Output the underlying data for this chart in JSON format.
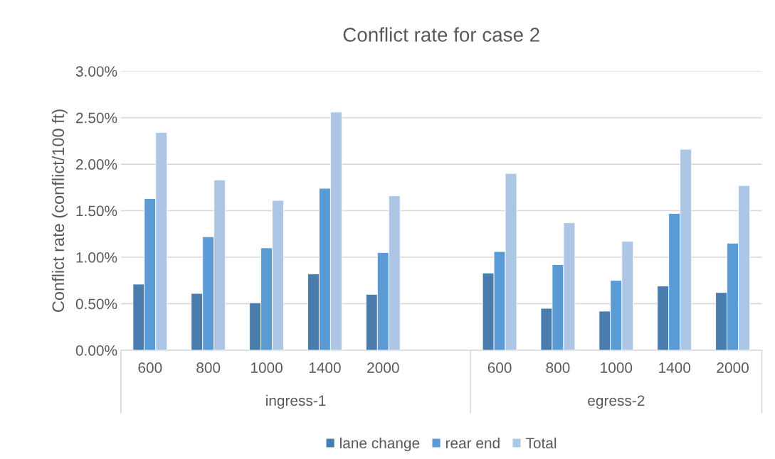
{
  "chart_data": {
    "type": "bar",
    "title": "Conflict rate for case 2",
    "ylabel": "Conflict rate (conflict/100 ft)",
    "categories": [
      "600",
      "800",
      "1000",
      "1400",
      "2000",
      null,
      "600",
      "800",
      "1000",
      "1400",
      "2000"
    ],
    "series": [
      {
        "name": "lane change",
        "color": "#4a7dad",
        "values": [
          0.71,
          0.61,
          0.51,
          0.82,
          0.6,
          null,
          0.83,
          0.45,
          0.42,
          0.69,
          0.62
        ]
      },
      {
        "name": "rear end",
        "color": "#5b9bd5",
        "values": [
          1.63,
          1.22,
          1.1,
          1.74,
          1.05,
          null,
          1.06,
          0.92,
          0.75,
          1.47,
          1.15
        ]
      },
      {
        "name": "Total",
        "color": "#adc6e5",
        "values": [
          2.34,
          1.83,
          1.61,
          2.56,
          1.66,
          null,
          1.9,
          1.37,
          1.17,
          2.16,
          1.77
        ]
      }
    ],
    "annotations": [
      "ingress-1",
      "egress-2"
    ],
    "ylim": [
      0,
      3
    ],
    "yticks": [
      {
        "value": 0,
        "label": "0.00%"
      },
      {
        "value": 0.5,
        "label": "0.50%"
      },
      {
        "value": 1,
        "label": "1.00%"
      },
      {
        "value": 1.5,
        "label": "1.50%"
      },
      {
        "value": 2,
        "label": "2.00%"
      },
      {
        "value": 2.5,
        "label": "2.50%"
      },
      {
        "value": 3,
        "label": "3.00%"
      }
    ],
    "grid": "y",
    "legend": "bottom"
  }
}
